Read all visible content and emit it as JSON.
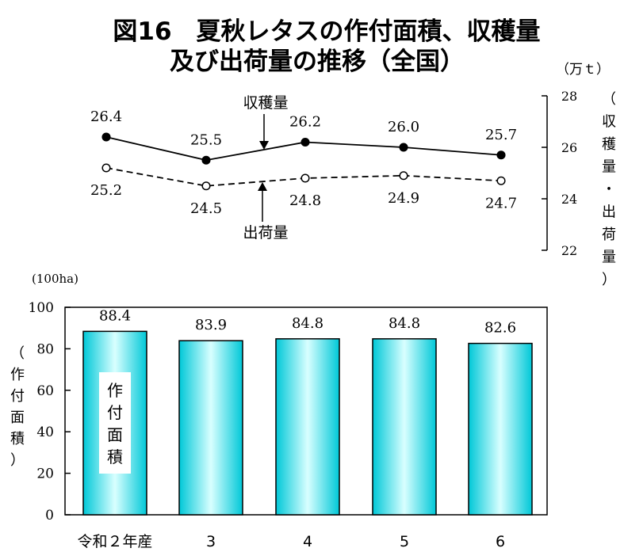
{
  "title_lines": [
    "図16　夏秋レタスの作付面積、収穫量",
    "及び出荷量の推移（全国）"
  ],
  "colors": {
    "bar_edge": "#00c8d8",
    "bar_center": "#d9ffff",
    "bar_fill": "#22e6f0",
    "line_color": "#000000"
  },
  "chart_data": [
    {
      "type": "line",
      "unit_label": "（万ｔ）",
      "right_axis_label": "（収穫量・出荷量）",
      "y_axis": {
        "side": "right",
        "ylim": [
          22,
          28
        ],
        "ticks": [
          22,
          24,
          26,
          28
        ]
      },
      "categories": [
        "令和２年産",
        "3",
        "4",
        "5",
        "6"
      ],
      "series": [
        {
          "name": "収穫量",
          "style": "solid",
          "marker": "filled-circle",
          "values": [
            26.4,
            25.5,
            26.2,
            26.0,
            25.7
          ],
          "labels": [
            "26.4",
            "25.5",
            "26.2",
            "26.0",
            "25.7"
          ]
        },
        {
          "name": "出荷量",
          "style": "dashed",
          "marker": "open-circle",
          "values": [
            25.2,
            24.5,
            24.8,
            24.9,
            24.7
          ],
          "labels": [
            "25.2",
            "24.5",
            "24.8",
            "24.9",
            "24.7"
          ]
        }
      ],
      "grid": false
    },
    {
      "type": "bar",
      "unit_label": "(100ha)",
      "y_axis_label": "（作付面積）",
      "bar_inside_label": "作付面積",
      "categories": [
        "令和２年産",
        "3",
        "4",
        "5",
        "6"
      ],
      "values": [
        88.4,
        83.9,
        84.8,
        84.8,
        82.6
      ],
      "value_labels": [
        "88.4",
        "83.9",
        "84.8",
        "84.8",
        "82.6"
      ],
      "ylim": [
        0,
        100
      ],
      "yticks": [
        0,
        20,
        40,
        60,
        80,
        100
      ],
      "grid": false
    }
  ]
}
